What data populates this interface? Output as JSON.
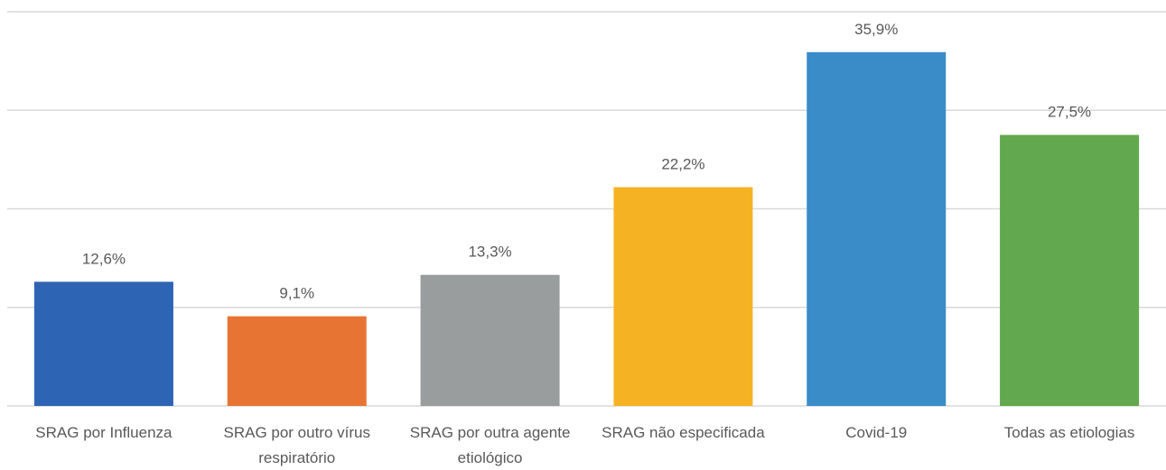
{
  "chart_data": {
    "type": "bar",
    "categories": [
      "SRAG por Influenza",
      "SRAG por outro vírus respiratório",
      "SRAG por outra agente etiológico",
      "SRAG não especificada",
      "Covid-19",
      "Todas as etiologias"
    ],
    "values": [
      12.6,
      9.1,
      13.3,
      22.2,
      35.9,
      27.5
    ],
    "value_labels": [
      "12,6%",
      "9,1%",
      "13,3%",
      "22,2%",
      "35,9%",
      "27,5%"
    ],
    "colors": [
      "#2e64b4",
      "#e87433",
      "#9a9d9e",
      "#f5b324",
      "#3a8cc9",
      "#62a84e"
    ],
    "ylim": [
      0,
      40
    ],
    "yticks": [
      0,
      10,
      20,
      30,
      40
    ],
    "grid": true,
    "ytick_labels": false
  }
}
